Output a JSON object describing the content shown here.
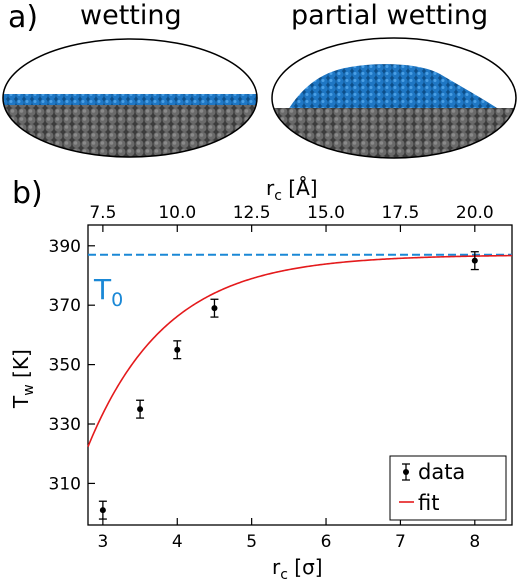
{
  "panel_a": {
    "label": "a)",
    "left_title": "wetting",
    "right_title": "partial wetting"
  },
  "panel_b": {
    "label": "b)"
  },
  "colors": {
    "substrate": "#505050",
    "droplet": "#1f77c4",
    "fit": "#e41a1c",
    "t0": "#1a88d6",
    "data": "#000000"
  },
  "chart_data": {
    "type": "scatter",
    "xlabel": "r_c [σ]",
    "x2label": "r_c [Å]",
    "ylabel": "T_w [K]",
    "xlim": [
      2.8,
      8.5
    ],
    "ylim": [
      296,
      397
    ],
    "x_ticks": [
      3,
      4,
      5,
      6,
      7,
      8
    ],
    "y_ticks": [
      310,
      330,
      350,
      370,
      390
    ],
    "x2_ticks": [
      "7.5",
      "10.0",
      "12.5",
      "15.0",
      "17.5",
      "20.0"
    ],
    "angstrom_per_sigma": 2.5,
    "t0_label": "T",
    "t0_sub": "0",
    "t0_value": 387,
    "series": [
      {
        "name": "data",
        "x": [
          3.0,
          3.5,
          4.0,
          4.5,
          8.0
        ],
        "y": [
          301,
          335,
          355,
          369,
          385
        ],
        "yerr": [
          3,
          3,
          3,
          3,
          3
        ]
      },
      {
        "name": "fit",
        "type": "line",
        "model": "T0 - A*exp(-x/tau)",
        "params": {
          "T0": 387,
          "A": 914,
          "tau": 1.057
        }
      }
    ],
    "legend": {
      "position": "lower-right",
      "items": [
        "data",
        "fit"
      ]
    }
  }
}
